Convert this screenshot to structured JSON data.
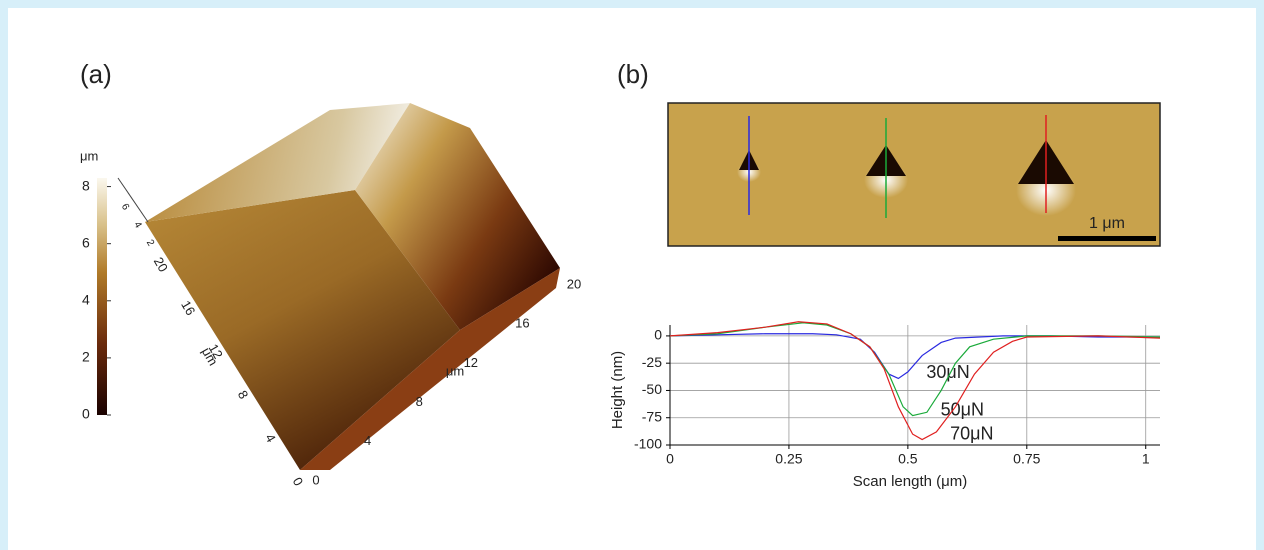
{
  "panel_a": {
    "label": "(a)",
    "colorbar": {
      "unit": "μm",
      "range": [
        0,
        8.3
      ],
      "ticks": [
        0,
        2,
        4,
        6,
        8
      ]
    },
    "x_axis": {
      "ticks": [
        0,
        4,
        8,
        12,
        16,
        20
      ],
      "unit": "μm"
    },
    "y_axis": {
      "ticks": [
        0,
        4,
        8,
        12,
        16,
        20
      ],
      "unit": "μm"
    },
    "z_axis": {
      "ticks": [
        2,
        4,
        6
      ]
    }
  },
  "panel_b": {
    "label": "(b)",
    "scale_bar": "1 μm"
  },
  "chart_data": {
    "type": "line",
    "xlabel": "Scan length (μm)",
    "ylabel": "Height (nm)",
    "xlim": [
      0,
      1.03
    ],
    "ylim": [
      -100,
      10
    ],
    "xticks": [
      0,
      0.25,
      0.5,
      0.75,
      1
    ],
    "yticks": [
      0,
      -25,
      -50,
      -75,
      -100
    ],
    "grid": true,
    "series": [
      {
        "name": "30μN",
        "color": "#2a2ae0",
        "x": [
          0,
          0.1,
          0.2,
          0.3,
          0.35,
          0.4,
          0.43,
          0.46,
          0.48,
          0.5,
          0.53,
          0.57,
          0.6,
          0.65,
          0.7,
          0.8,
          0.9,
          1.0,
          1.03
        ],
        "values": [
          0,
          1,
          2,
          2,
          1,
          -3,
          -15,
          -35,
          -39,
          -33,
          -18,
          -6,
          -2,
          -1,
          0,
          0,
          -1,
          -1,
          -1
        ]
      },
      {
        "name": "50μN",
        "color": "#1aaa3a",
        "x": [
          0,
          0.1,
          0.2,
          0.28,
          0.33,
          0.38,
          0.42,
          0.46,
          0.49,
          0.51,
          0.54,
          0.57,
          0.6,
          0.63,
          0.68,
          0.75,
          0.9,
          1.03
        ],
        "values": [
          0,
          2,
          8,
          12,
          10,
          2,
          -10,
          -35,
          -65,
          -73,
          -70,
          -50,
          -25,
          -10,
          -3,
          0,
          0,
          -1
        ]
      },
      {
        "name": "70μN",
        "color": "#e02020",
        "x": [
          0,
          0.1,
          0.2,
          0.27,
          0.33,
          0.38,
          0.42,
          0.45,
          0.48,
          0.51,
          0.53,
          0.56,
          0.6,
          0.64,
          0.68,
          0.72,
          0.75,
          0.9,
          1.03
        ],
        "values": [
          0,
          3,
          8,
          13,
          11,
          2,
          -10,
          -30,
          -65,
          -90,
          -95,
          -88,
          -65,
          -35,
          -15,
          -5,
          -1,
          0,
          -2
        ]
      }
    ]
  }
}
